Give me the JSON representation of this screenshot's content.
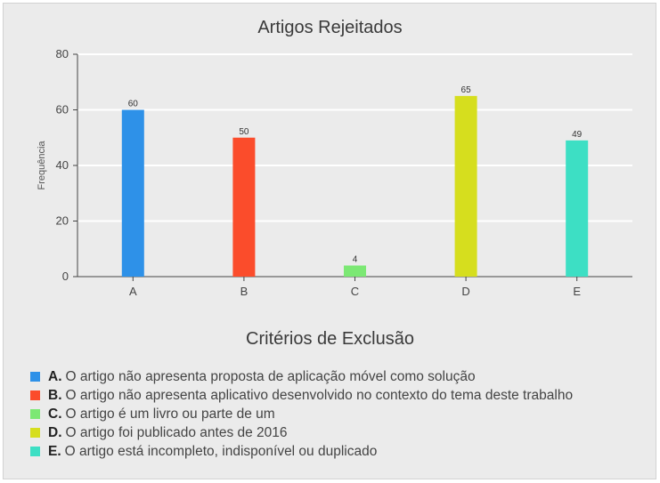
{
  "chart_data": {
    "type": "bar",
    "title": "Artigos Rejeitados",
    "ylabel": "Frequência",
    "xlabel": "",
    "ylim": [
      0,
      80
    ],
    "yticks": [
      0,
      20,
      40,
      60,
      80
    ],
    "grid": true,
    "categories": [
      "A",
      "B",
      "C",
      "D",
      "E"
    ],
    "values": [
      60,
      50,
      4,
      65,
      49
    ],
    "data_labels": [
      "60",
      "50",
      "4",
      "65",
      "49"
    ],
    "colors": [
      "#2e91e8",
      "#fb4c2b",
      "#7ce874",
      "#d6de1e",
      "#3ddfc4"
    ]
  },
  "legend": {
    "title": "Critérios de Exclusão",
    "items": [
      {
        "key": "A.",
        "text": "O artigo não apresenta proposta de aplicação móvel como solução",
        "color": "#2e91e8"
      },
      {
        "key": "B.",
        "text": "O artigo não apresenta aplicativo desenvolvido no contexto do tema deste trabalho",
        "color": "#fb4c2b"
      },
      {
        "key": "C.",
        "text": "O artigo é um livro ou parte de um",
        "color": "#7ce874"
      },
      {
        "key": "D.",
        "text": "O artigo foi publicado antes de 2016",
        "color": "#d6de1e"
      },
      {
        "key": "E.",
        "text": "O artigo está incompleto, indisponível ou duplicado",
        "color": "#3ddfc4"
      }
    ]
  }
}
